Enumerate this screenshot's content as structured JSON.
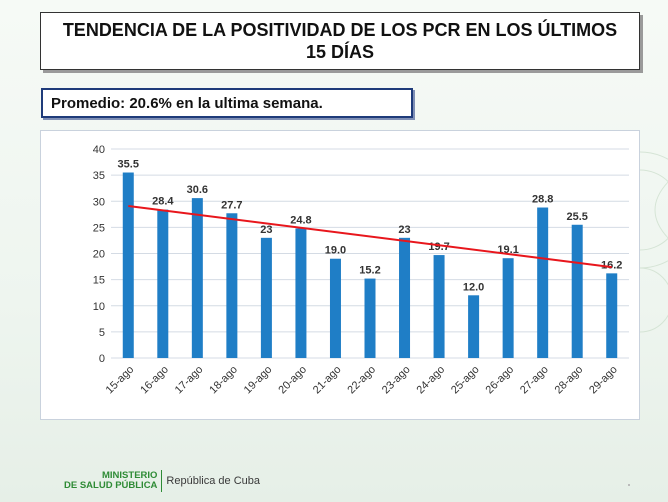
{
  "title": "TENDENCIA DE LA POSITIVIDAD DE LOS PCR EN LOS ÚLTIMOS 15 DÍAS",
  "average_label": "Promedio: 20.6% en la ultima semana.",
  "footer": {
    "ministry_line1": "MINISTERIO",
    "ministry_line2": "DE SALUD PÚBLICA",
    "republic": "República de Cuba"
  },
  "chart_data": {
    "type": "bar",
    "title": "",
    "xlabel": "",
    "ylabel": "",
    "categories": [
      "15-ago",
      "16-ago",
      "17-ago",
      "18-ago",
      "19-ago",
      "20-ago",
      "21-ago",
      "22-ago",
      "23-ago",
      "24-ago",
      "25-ago",
      "26-ago",
      "27-ago",
      "28-ago",
      "29-ago"
    ],
    "values": [
      35.5,
      28.4,
      30.6,
      27.7,
      23,
      24.8,
      19.0,
      15.2,
      23,
      19.7,
      12.0,
      19.1,
      28.8,
      25.5,
      16.2
    ],
    "value_labels": [
      "35.5",
      "28.4",
      "30.6",
      "27.7",
      "23",
      "24.8",
      "19.0",
      "15.2",
      "23",
      "19.7",
      "12.0",
      "19.1",
      "28.8",
      "25.5",
      "16.2"
    ],
    "ylim": [
      0,
      40
    ],
    "yticks": [
      0,
      5,
      10,
      15,
      20,
      25,
      30,
      35,
      40
    ],
    "grid": true,
    "trendline": {
      "start": 29.1,
      "end": 17.4
    },
    "colors": {
      "bar": "#1f7ec6",
      "trend": "#e8161c",
      "grid": "#d4dbe4"
    }
  }
}
